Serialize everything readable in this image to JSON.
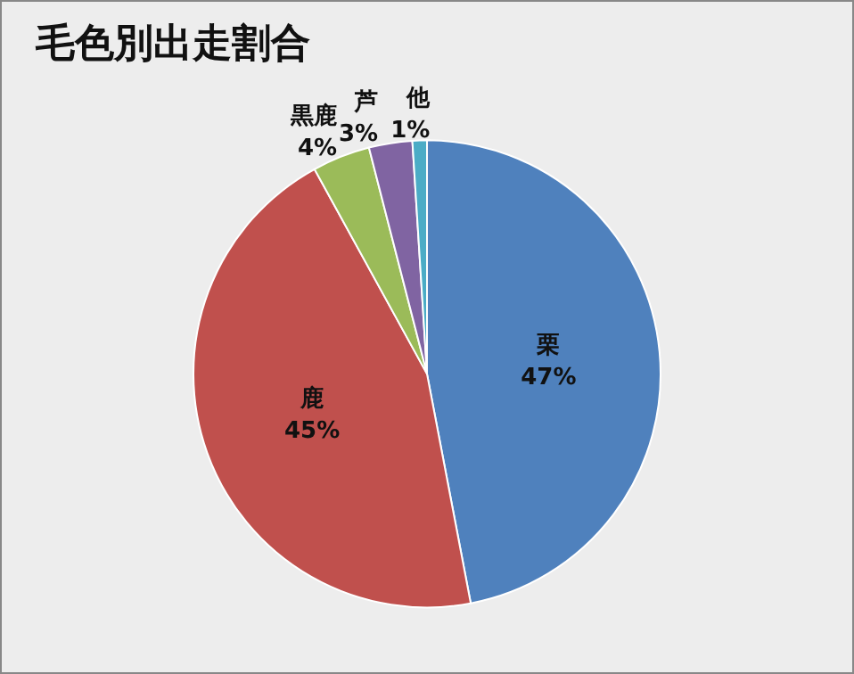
{
  "chart_data": {
    "type": "pie",
    "title": "毛色別出走割合",
    "categories": [
      "栗",
      "鹿",
      "黒鹿",
      "芦",
      "他"
    ],
    "values": [
      47,
      45,
      4,
      3,
      1
    ],
    "colors": [
      "#4f81bd",
      "#c0504d",
      "#9bbb59",
      "#8064a2",
      "#4bacc6"
    ],
    "value_labels": [
      "47%",
      "45%",
      "4%",
      "3%",
      "1%"
    ]
  }
}
